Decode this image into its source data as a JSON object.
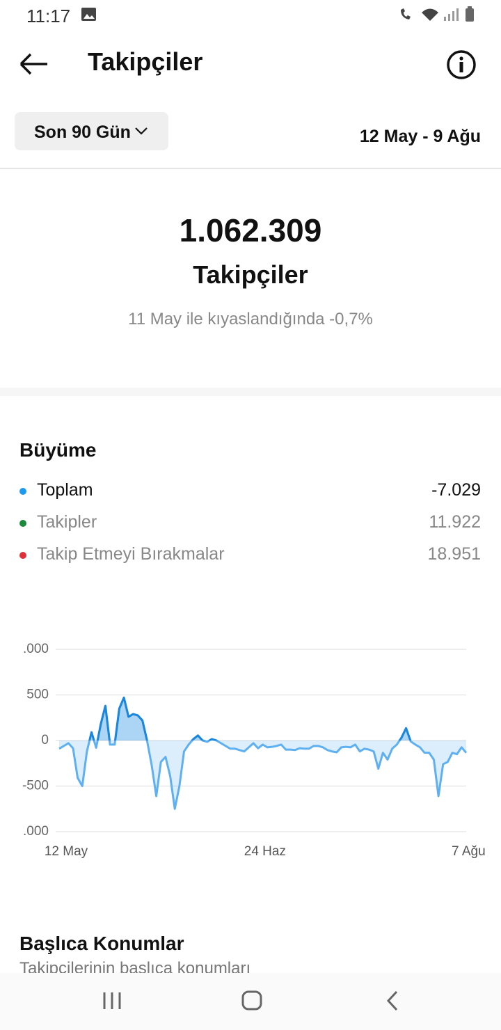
{
  "status_bar": {
    "time": "11:17"
  },
  "header": {
    "title": "Takipçiler"
  },
  "filter": {
    "period": "Son 90 Gün",
    "date_range": "12 May - 9 Ağu"
  },
  "summary": {
    "value": "1.062.309",
    "label": "Takipçiler",
    "comparison": "11 May ile kıyaslandığında -0,7%"
  },
  "growth": {
    "title": "Büyüme",
    "items": [
      {
        "label": "Toplam",
        "value": "-7.029",
        "color": "#1d9bf0"
      },
      {
        "label": "Takipler",
        "value": "11.922",
        "color": "#1b8a3a"
      },
      {
        "label": "Takip Etmeyi Bırakmalar",
        "value": "18.951",
        "color": "#e0303a"
      }
    ]
  },
  "chart_data": {
    "type": "area",
    "categories": [
      "12 May",
      null,
      null,
      null,
      null,
      null,
      null,
      null,
      null,
      null,
      null,
      null,
      null,
      null,
      null,
      null,
      null,
      null,
      null,
      null,
      null,
      null,
      null,
      null,
      null,
      null,
      null,
      null,
      null,
      null,
      null,
      null,
      null,
      null,
      null,
      null,
      null,
      null,
      null,
      null,
      null,
      null,
      null,
      "24 Haz",
      null,
      null,
      null,
      null,
      null,
      null,
      null,
      null,
      null,
      null,
      null,
      null,
      null,
      null,
      null,
      null,
      null,
      null,
      null,
      null,
      null,
      null,
      null,
      null,
      null,
      null,
      null,
      null,
      null,
      null,
      null,
      null,
      null,
      null,
      null,
      null,
      null,
      null,
      null,
      null,
      null,
      null,
      null,
      "7 Ağu",
      null
    ],
    "values": [
      -90,
      -60,
      -30,
      -85,
      -410,
      -500,
      -120,
      90,
      -80,
      180,
      380,
      -45,
      -45,
      350,
      470,
      260,
      290,
      275,
      220,
      0,
      -270,
      -610,
      -235,
      -180,
      -390,
      -750,
      -500,
      -120,
      -45,
      15,
      55,
      0,
      -15,
      15,
      0,
      -30,
      -60,
      -90,
      -90,
      -105,
      -120,
      -75,
      -30,
      -85,
      -45,
      -75,
      -70,
      -60,
      -45,
      -100,
      -100,
      -105,
      -85,
      -90,
      -90,
      -60,
      -60,
      -75,
      -105,
      -120,
      -130,
      -75,
      -70,
      -75,
      -45,
      -120,
      -90,
      -100,
      -120,
      -310,
      -135,
      -210,
      -90,
      -45,
      30,
      135,
      -10,
      -45,
      -75,
      -135,
      -135,
      -210,
      -610,
      -260,
      -235,
      -135,
      -150,
      -75,
      -135
    ],
    "color": "#5fb0f0",
    "positive_color": "#1a86dc",
    "ylim": [
      -1000,
      1000
    ],
    "yticks": [
      {
        "value": -1000,
        "label": ".000"
      },
      -500,
      0,
      500,
      {
        "value": 1000,
        "label": ".000"
      }
    ],
    "grid": true
  },
  "locations": {
    "title": "Başlıca Konumlar",
    "subtitle": "Takipçilerinin başlıca konumları"
  }
}
